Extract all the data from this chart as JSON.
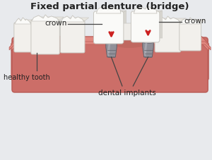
{
  "title": "Fixed partial denture (bridge)",
  "bg_color": "#e8eaed",
  "labels": {
    "crown_left": "crown",
    "crown_right": "crown",
    "healthy_tooth": "healthy tooth",
    "dental_implants": "dental implants"
  },
  "gum_main": "#cc6e68",
  "gum_light": "#e08880",
  "gum_dark": "#b85a54",
  "gum_darker": "#a04840",
  "tooth_white": "#f2f0ec",
  "tooth_light": "#fafaf8",
  "tooth_shadow": "#d8d6d0",
  "tooth_edge": "#c8c6c0",
  "implant_body": "#909098",
  "implant_light": "#b0b0b8",
  "implant_dark": "#606068",
  "arrow_red": "#cc2020",
  "text_dark": "#222222",
  "line_color": "#444444"
}
